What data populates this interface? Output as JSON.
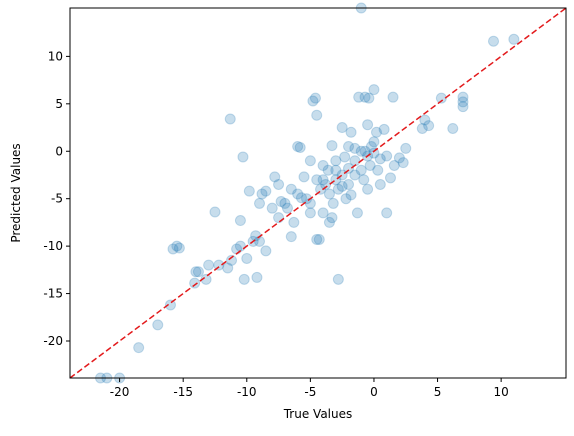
{
  "chart_data": {
    "type": "scatter",
    "xlabel": "True Values",
    "ylabel": "Predicted Values",
    "color": "#1f77b4",
    "opacity": 0.25,
    "reference_line": {
      "color": "#e31a1c",
      "style": "dashed"
    },
    "xlim": [
      -23.9,
      15.1
    ],
    "ylim": [
      -23.9,
      15.1
    ],
    "xticks": [
      -20,
      -15,
      -10,
      -5,
      0,
      5,
      10
    ],
    "yticks": [
      -20,
      -15,
      -10,
      -5,
      0,
      5,
      10
    ],
    "x": [
      -21.5,
      -21,
      -20,
      -18.5,
      -17,
      -16,
      -15.5,
      -15.8,
      -15.3,
      -14,
      -13.8,
      -14.1,
      -13.2,
      -13,
      -12.5,
      -12.2,
      -11.5,
      -11.3,
      -11.2,
      -10.8,
      -10.5,
      -10.5,
      -10.2,
      -10.3,
      -10,
      -9.8,
      -9.5,
      -9.3,
      -9.2,
      -9,
      -9,
      -8.8,
      -8.5,
      -8.5,
      -8,
      -7.8,
      -7.5,
      -7.5,
      -7.3,
      -7,
      -6.8,
      -6.5,
      -6.3,
      -6,
      -6,
      -5.8,
      -5.7,
      -5.5,
      -5.3,
      -5,
      -5,
      -4.8,
      -4.6,
      -4.5,
      -4.5,
      -4.5,
      -4.3,
      -4.2,
      -4,
      -4,
      -3.8,
      -3.6,
      -3.5,
      -3.5,
      -3.3,
      -3.2,
      -3,
      -3,
      -2.8,
      -2.8,
      -2.5,
      -2.5,
      -2.3,
      -2.2,
      -2,
      -2,
      -1.8,
      -1.8,
      -1.5,
      -1.5,
      -1.3,
      -1.2,
      -1,
      -1,
      -0.8,
      -0.7,
      -0.5,
      -0.5,
      -0.5,
      -0.4,
      -0.3,
      -0.2,
      0,
      0,
      0,
      0.2,
      0.3,
      0.5,
      0.5,
      0.8,
      1,
      1,
      1.3,
      1.5,
      1.6,
      2,
      2.3,
      2.5,
      3.8,
      4,
      4.3,
      5.3,
      6.2,
      7,
      7,
      7,
      9.4,
      11,
      -1,
      -2,
      -1.5,
      -0.7,
      -3,
      -2.5,
      -4,
      -6.5,
      -5,
      -3.3
    ],
    "y": [
      -23.9,
      -23.9,
      -23.9,
      -20.7,
      -18.3,
      -16.2,
      -10,
      -10.3,
      -10.2,
      -12.7,
      -12.7,
      -13.9,
      -13.5,
      -12,
      -6.4,
      -12,
      -12.3,
      3.4,
      -11.5,
      -10.3,
      -10,
      -7.3,
      -13.5,
      -0.6,
      -11.3,
      -4.2,
      -9.5,
      -8.9,
      -13.3,
      -9.5,
      -5.5,
      -4.5,
      -4.2,
      -10.5,
      -6,
      -2.7,
      -7,
      -3.5,
      -5.3,
      -5.5,
      -6,
      -4,
      -7.5,
      -4.5,
      0.5,
      0.4,
      -4.9,
      -2.7,
      -5,
      -6.5,
      -1,
      5.3,
      5.6,
      3.8,
      -3,
      -9.3,
      -9.3,
      -4,
      -1.5,
      -6.5,
      -3.5,
      -2,
      -4.5,
      -7.5,
      0.6,
      -5.5,
      -3,
      -1,
      -13.5,
      -4,
      2.5,
      -2.5,
      -0.6,
      -5,
      -3.5,
      -1.8,
      2,
      -4.6,
      -1,
      -2.5,
      -6.5,
      5.7,
      0,
      -2,
      -3,
      5.7,
      -0.5,
      2.8,
      -4,
      5.6,
      -1.5,
      0.5,
      6.5,
      1,
      -0.2,
      2,
      -2,
      -0.8,
      -3.5,
      2.3,
      -6.5,
      -0.5,
      -2.8,
      5.7,
      -1.5,
      -0.7,
      -1.2,
      0.3,
      2.4,
      3.3,
      2.7,
      5.6,
      2.4,
      5.7,
      5.2,
      4.7,
      11.6,
      11.8,
      15.1,
      0.5,
      0.3,
      0,
      -2,
      -3.7,
      -3,
      -9,
      -5.5,
      -7
    ]
  }
}
